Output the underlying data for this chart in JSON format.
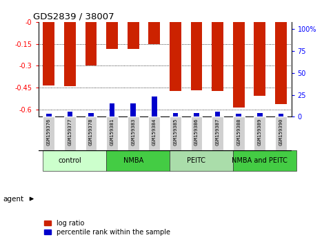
{
  "title": "GDS2839 / 38007",
  "samples": [
    "GSM159376",
    "GSM159377",
    "GSM159378",
    "GSM159381",
    "GSM159383",
    "GSM159384",
    "GSM159385",
    "GSM159386",
    "GSM159387",
    "GSM159388",
    "GSM159389",
    "GSM159390"
  ],
  "log_ratio": [
    -0.435,
    -0.44,
    -0.3,
    -0.185,
    -0.185,
    -0.152,
    -0.475,
    -0.47,
    -0.475,
    -0.585,
    -0.505,
    -0.565
  ],
  "percentile_rank_pct": [
    3.5,
    5.5,
    4.5,
    15.0,
    15.5,
    23.5,
    4.5,
    4.5,
    5.5,
    3.5,
    4.5,
    3.5
  ],
  "groups": [
    {
      "label": "control",
      "start": 0,
      "end": 3,
      "color": "#ccffcc"
    },
    {
      "label": "NMBA",
      "start": 3,
      "end": 6,
      "color": "#44cc44"
    },
    {
      "label": "PEITC",
      "start": 6,
      "end": 9,
      "color": "#aaddaa"
    },
    {
      "label": "NMBA and PEITC",
      "start": 9,
      "end": 12,
      "color": "#44cc44"
    }
  ],
  "ylim_left": [
    -0.65,
    0.0
  ],
  "yticks_left": [
    0.0,
    -0.15,
    -0.3,
    -0.45,
    -0.6
  ],
  "ytick_labels_left": [
    "-0",
    "-0.15",
    "-0.3",
    "-0.45",
    "-0.6"
  ],
  "ylim_right": [
    0,
    108.3
  ],
  "yticks_right": [
    0,
    25,
    50,
    75,
    100
  ],
  "ytick_labels_right": [
    "0",
    "25",
    "50",
    "75",
    "100%"
  ],
  "bar_color_red": "#cc2200",
  "bar_color_blue": "#0000cc",
  "bar_width": 0.55,
  "blue_bar_width": 0.25,
  "agent_label": "agent",
  "legend_items": [
    "log ratio",
    "percentile rank within the sample"
  ],
  "background_color": "#ffffff"
}
